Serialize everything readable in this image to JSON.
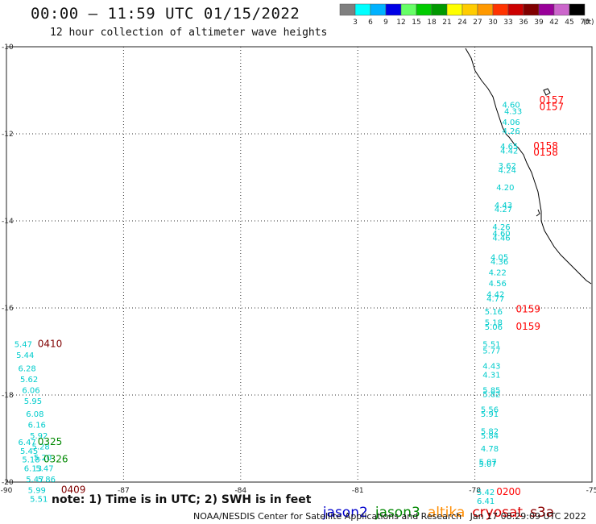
{
  "header": {
    "title": "00:00 – 11:59 UTC 01/15/2022",
    "subtitle": "12 hour collection of altimeter wave heights"
  },
  "color_scale": {
    "labels": [
      "3",
      "6",
      "9",
      "12",
      "15",
      "18",
      "21",
      "24",
      "27",
      "30",
      "33",
      "36",
      "39",
      "42",
      "45",
      "70"
    ],
    "unit": "(ft)",
    "colors": [
      "#7f7f7f",
      "#00ffff",
      "#00b2ff",
      "#0000e6",
      "#66ff66",
      "#00cc00",
      "#009900",
      "#ffff00",
      "#ffcc00",
      "#ff9900",
      "#ff3300",
      "#cc0000",
      "#800000",
      "#990099",
      "#cc66cc",
      "#000000"
    ]
  },
  "footer": {
    "note": "note: 1) Time is in UTC; 2) SWH is in feet",
    "satellites": [
      {
        "name": "jason2",
        "color": "#0000cc"
      },
      {
        "name": "jason3",
        "color": "#008800"
      },
      {
        "name": "altika",
        "color": "#ff8c00"
      },
      {
        "name": "cryosat",
        "color": "#dd0000"
      },
      {
        "name": "s3a",
        "color": "#8b0000"
      }
    ],
    "credit": "NOAA/NESDIS Center for Satellite Applications and Research",
    "timestamp": "Jan 17 08:29:09 UTC 2022"
  },
  "chart_data": {
    "type": "scatter",
    "xlim": [
      -90,
      -75
    ],
    "ylim": [
      -20,
      -10
    ],
    "x_ticks": [
      "-90",
      "-87",
      "-84",
      "-81",
      "-78",
      "-75"
    ],
    "y_ticks": [
      "-10",
      "-12",
      "-14",
      "-16",
      "-18",
      "-20"
    ],
    "grid": true,
    "wave_color": "#00cccc",
    "wave_heights": [
      {
        "lon": -77.3,
        "lat": -11.4,
        "value": "4.60"
      },
      {
        "lon": -77.25,
        "lat": -11.55,
        "value": "4.33"
      },
      {
        "lon": -77.3,
        "lat": -11.8,
        "value": "4.06"
      },
      {
        "lon": -77.3,
        "lat": -12.0,
        "value": "4.26"
      },
      {
        "lon": -77.35,
        "lat": -12.35,
        "value": "4.65"
      },
      {
        "lon": -77.35,
        "lat": -12.45,
        "value": "4.42"
      },
      {
        "lon": -77.4,
        "lat": -12.8,
        "value": "3.62"
      },
      {
        "lon": -77.4,
        "lat": -12.9,
        "value": "4.24"
      },
      {
        "lon": -77.45,
        "lat": -13.3,
        "value": "4.20"
      },
      {
        "lon": -77.5,
        "lat": -13.7,
        "value": "4.43"
      },
      {
        "lon": -77.5,
        "lat": -13.8,
        "value": "4.27"
      },
      {
        "lon": -77.55,
        "lat": -14.2,
        "value": "4.26"
      },
      {
        "lon": -77.55,
        "lat": -14.35,
        "value": "4.60"
      },
      {
        "lon": -77.55,
        "lat": -14.45,
        "value": "4.46"
      },
      {
        "lon": -77.6,
        "lat": -14.9,
        "value": "4.05"
      },
      {
        "lon": -77.6,
        "lat": -15.0,
        "value": "4.36"
      },
      {
        "lon": -77.65,
        "lat": -15.25,
        "value": "4.22"
      },
      {
        "lon": -77.65,
        "lat": -15.5,
        "value": "4.56"
      },
      {
        "lon": -77.7,
        "lat": -15.75,
        "value": "4.42"
      },
      {
        "lon": -77.7,
        "lat": -15.85,
        "value": "4.77"
      },
      {
        "lon": -77.75,
        "lat": -16.15,
        "value": "5.16"
      },
      {
        "lon": -77.75,
        "lat": -16.4,
        "value": "5.18"
      },
      {
        "lon": -77.75,
        "lat": -16.5,
        "value": "5.06"
      },
      {
        "lon": -77.8,
        "lat": -16.9,
        "value": "5.51"
      },
      {
        "lon": -77.8,
        "lat": -17.05,
        "value": "5.77"
      },
      {
        "lon": -77.8,
        "lat": -17.4,
        "value": "4.43"
      },
      {
        "lon": -77.8,
        "lat": -17.6,
        "value": "4.31"
      },
      {
        "lon": -77.8,
        "lat": -17.95,
        "value": "5.85"
      },
      {
        "lon": -77.8,
        "lat": -18.05,
        "value": "5.82"
      },
      {
        "lon": -77.85,
        "lat": -18.4,
        "value": "5.56"
      },
      {
        "lon": -77.85,
        "lat": -18.5,
        "value": "5.91"
      },
      {
        "lon": -77.85,
        "lat": -18.9,
        "value": "5.82"
      },
      {
        "lon": -77.85,
        "lat": -19.0,
        "value": "5.84"
      },
      {
        "lon": -77.85,
        "lat": -19.3,
        "value": "4.78"
      },
      {
        "lon": -77.9,
        "lat": -19.6,
        "value": "5.07"
      },
      {
        "lon": -77.9,
        "lat": -19.65,
        "value": "5.07"
      },
      {
        "lon": -77.95,
        "lat": -20.3,
        "value": "5.42"
      },
      {
        "lon": -77.95,
        "lat": -20.5,
        "value": "6.41"
      },
      {
        "lon": -89.8,
        "lat": -16.9,
        "value": "5.47"
      },
      {
        "lon": -89.75,
        "lat": -17.15,
        "value": "5.44"
      },
      {
        "lon": -89.7,
        "lat": -17.45,
        "value": "6.28"
      },
      {
        "lon": -89.65,
        "lat": -17.7,
        "value": "5.62"
      },
      {
        "lon": -89.6,
        "lat": -17.95,
        "value": "6.06"
      },
      {
        "lon": -89.55,
        "lat": -18.2,
        "value": "5.95"
      },
      {
        "lon": -89.5,
        "lat": -18.5,
        "value": "6.08"
      },
      {
        "lon": -89.45,
        "lat": -18.75,
        "value": "6.16"
      },
      {
        "lon": -89.4,
        "lat": -19.0,
        "value": "5.92"
      },
      {
        "lon": -89.35,
        "lat": -19.25,
        "value": "5.28"
      },
      {
        "lon": -89.3,
        "lat": -19.5,
        "value": "5.20"
      },
      {
        "lon": -89.25,
        "lat": -19.75,
        "value": "5.47"
      },
      {
        "lon": -89.2,
        "lat": -20.0,
        "value": "5.86"
      },
      {
        "lon": -89.7,
        "lat": -19.15,
        "value": "6.47"
      },
      {
        "lon": -89.65,
        "lat": -19.35,
        "value": "5.45"
      },
      {
        "lon": -89.6,
        "lat": -19.55,
        "value": "5.18"
      },
      {
        "lon": -89.55,
        "lat": -19.75,
        "value": "6.13"
      },
      {
        "lon": -89.5,
        "lat": -20.0,
        "value": "5.47"
      },
      {
        "lon": -89.45,
        "lat": -20.25,
        "value": "5.99"
      },
      {
        "lon": -89.4,
        "lat": -20.45,
        "value": "5.51"
      }
    ],
    "pass_times": [
      {
        "lon": -76.35,
        "lat": -11.3,
        "time": "0157",
        "color": "#ff0000"
      },
      {
        "lon": -76.35,
        "lat": -11.45,
        "time": "0157",
        "color": "#ff0000"
      },
      {
        "lon": -76.5,
        "lat": -12.35,
        "time": "0158",
        "color": "#ff0000"
      },
      {
        "lon": -76.5,
        "lat": -12.5,
        "time": "0158",
        "color": "#ff0000"
      },
      {
        "lon": -76.95,
        "lat": -16.1,
        "time": "0159",
        "color": "#ff0000"
      },
      {
        "lon": -76.95,
        "lat": -16.5,
        "time": "0159",
        "color": "#ff0000"
      },
      {
        "lon": -77.45,
        "lat": -20.3,
        "time": "0200",
        "color": "#ff0000"
      },
      {
        "lon": -89.2,
        "lat": -16.9,
        "time": "0410",
        "color": "#800000"
      },
      {
        "lon": -89.2,
        "lat": -19.15,
        "time": "0325",
        "color": "#008800"
      },
      {
        "lon": -89.05,
        "lat": -19.55,
        "time": "0326",
        "color": "#008800"
      },
      {
        "lon": -88.6,
        "lat": -20.25,
        "time": "0409",
        "color": "#800000"
      }
    ]
  }
}
